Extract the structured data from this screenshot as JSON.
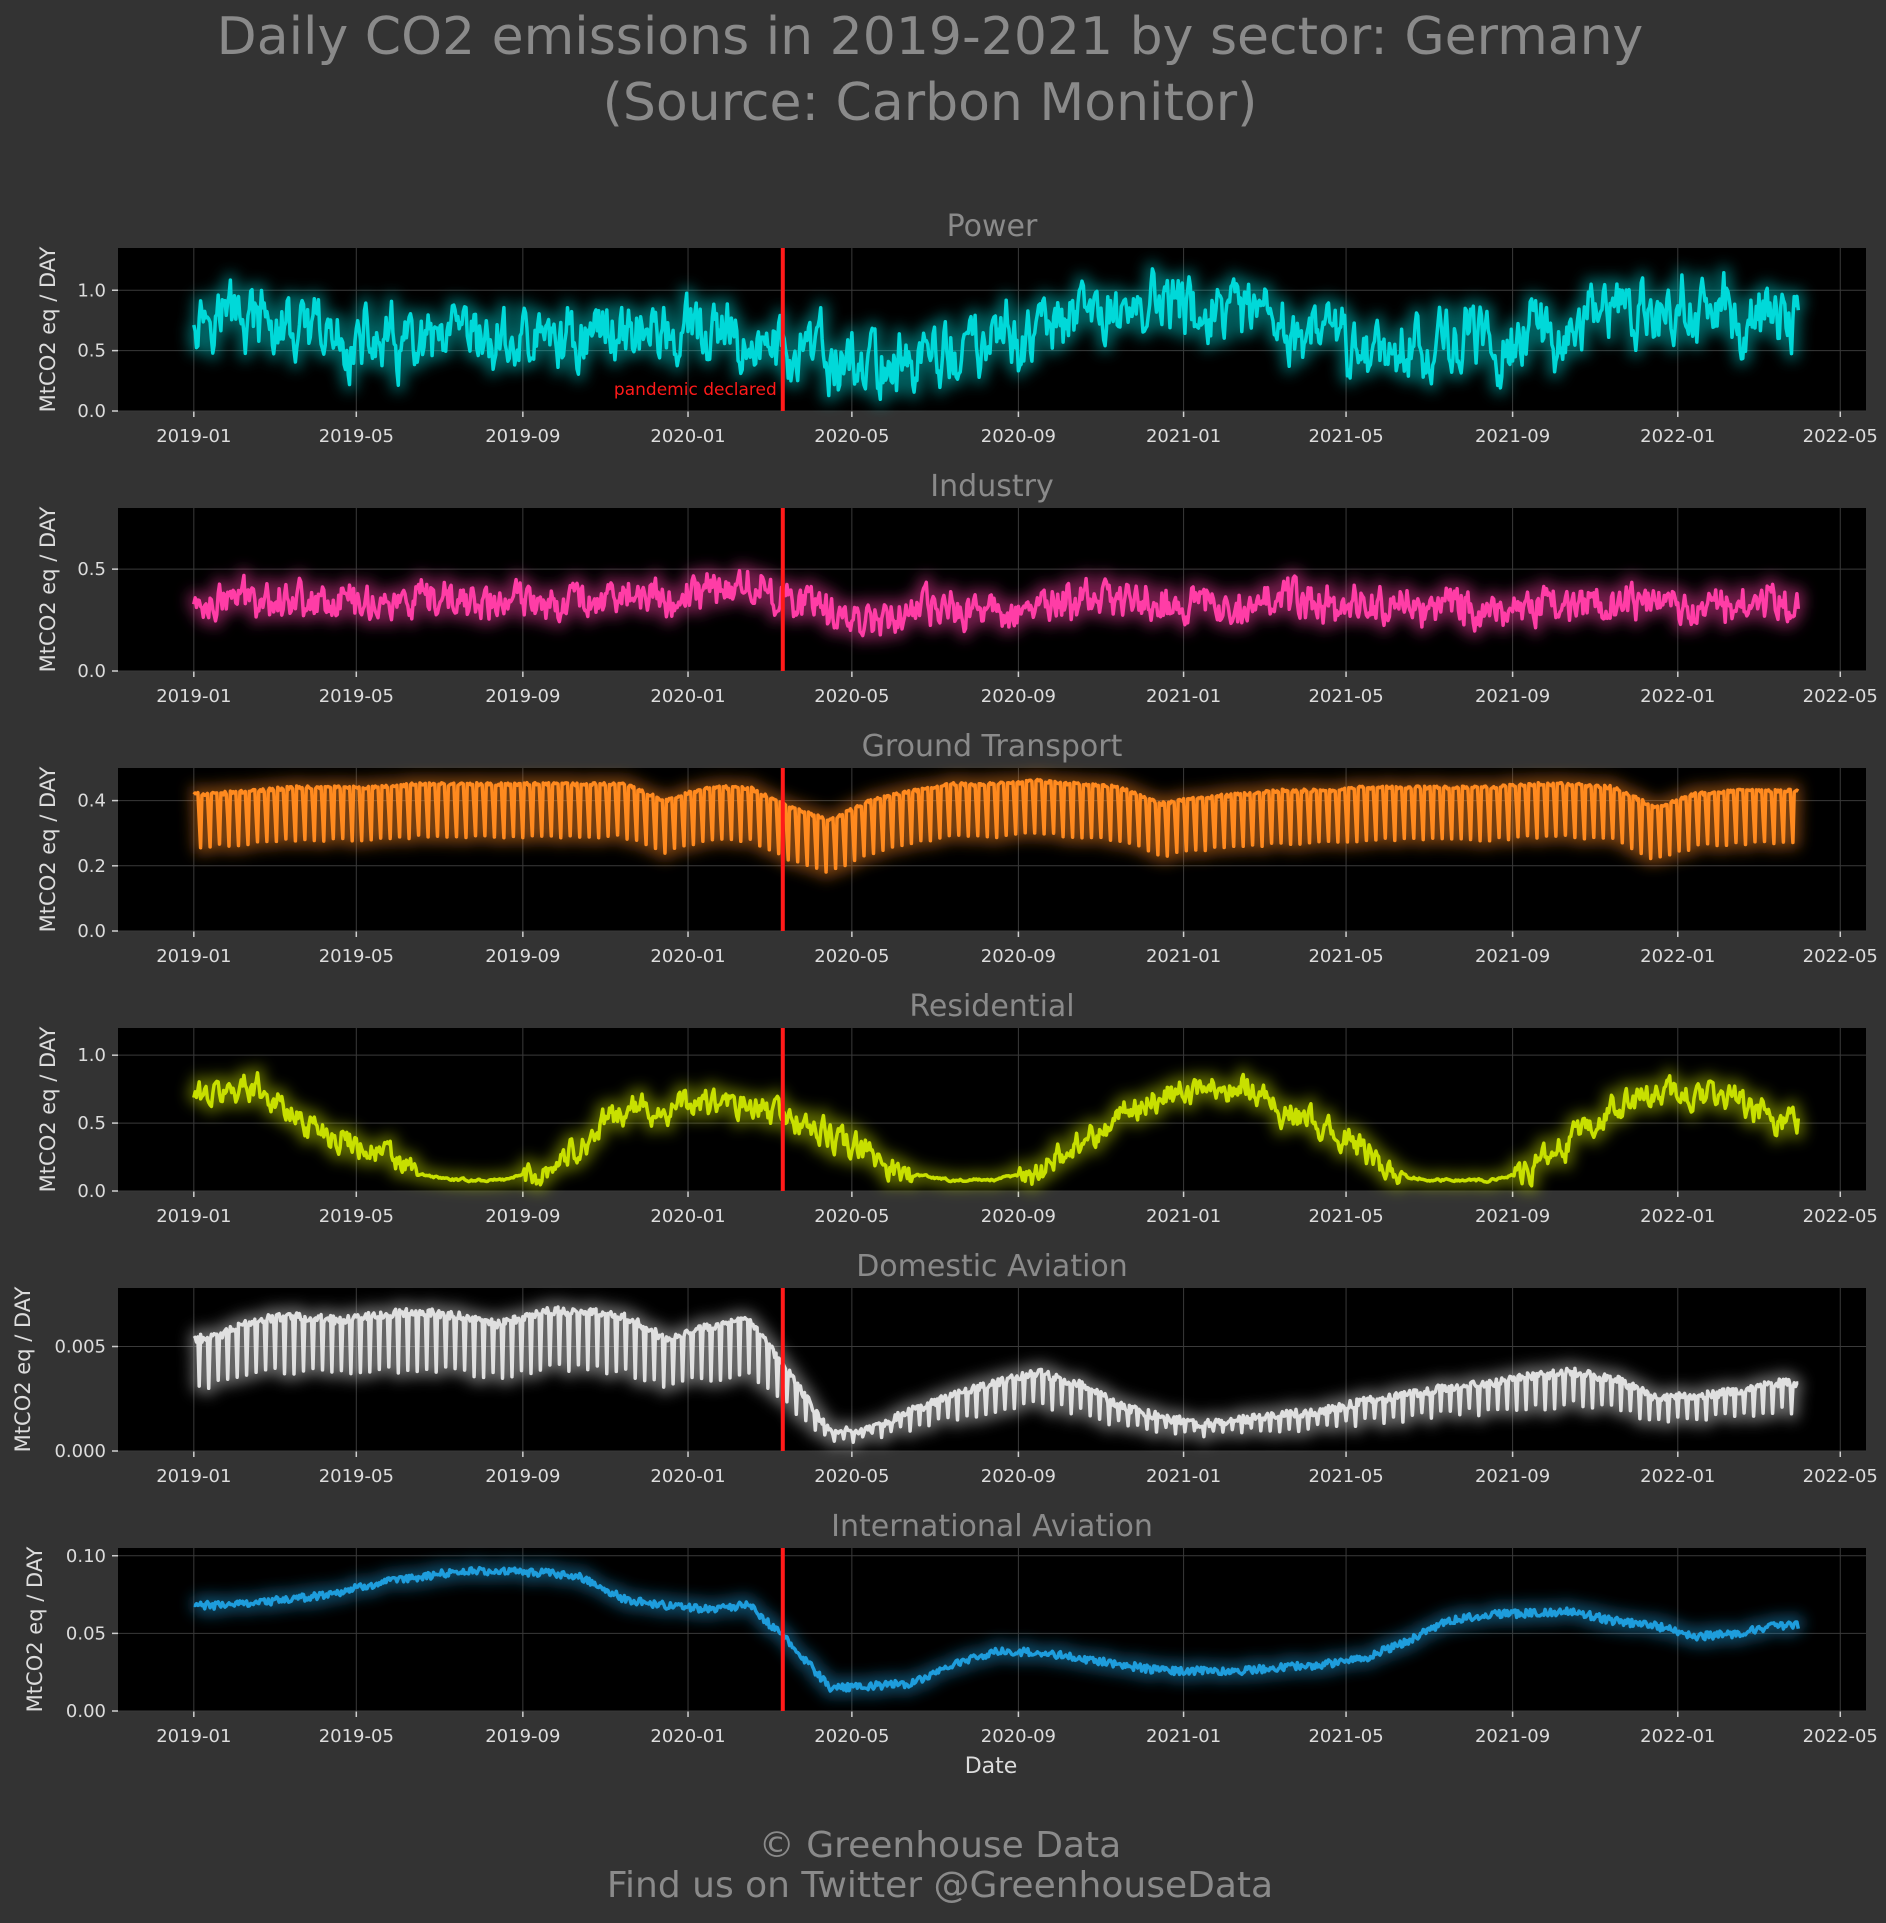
{
  "title_line1": "Daily CO2 emissions in 2019-2021 by sector: Germany",
  "title_line2": "(Source: Carbon Monitor)",
  "credit_line1": "© Greenhouse Data",
  "credit_line2": "Find us on Twitter @GreenhouseData",
  "colors": {
    "background": "#333333",
    "plot_background": "#000000",
    "grid": "#3a3a3a",
    "pandemic_line": "#ff1a1a"
  },
  "chart_data": {
    "type": "line",
    "xlabel": "Date",
    "x_ticks": [
      "2019-01",
      "2019-05",
      "2019-09",
      "2020-01",
      "2020-05",
      "2020-09",
      "2021-01",
      "2021-05",
      "2021-09",
      "2022-01",
      "2022-05"
    ],
    "x_range": [
      "2018-11-06",
      "2022-05-20"
    ],
    "data_range": [
      "2019-01-01",
      "2022-03-31"
    ],
    "annotation": {
      "date": "2020-03-11",
      "label": "pandemic declared"
    },
    "panels": [
      {
        "name": "Power",
        "ylabel": "MtCO2 eq / DAY",
        "color": "#00d9d9",
        "ylim": [
          0,
          1.35
        ],
        "yticks": [
          "0.0",
          "0.5",
          "1.0"
        ],
        "ytick_values": [
          0,
          0.5,
          1.0
        ],
        "monthly_mean": [
          [
            "2019-01",
            0.85
          ],
          [
            "2019-02",
            0.75
          ],
          [
            "2019-03",
            0.62
          ],
          [
            "2019-04",
            0.55
          ],
          [
            "2019-05",
            0.55
          ],
          [
            "2019-06",
            0.48
          ],
          [
            "2019-07",
            0.52
          ],
          [
            "2019-08",
            0.55
          ],
          [
            "2019-09",
            0.58
          ],
          [
            "2019-10",
            0.62
          ],
          [
            "2019-11",
            0.72
          ],
          [
            "2019-12",
            0.62
          ],
          [
            "2020-01",
            0.6
          ],
          [
            "2020-02",
            0.55
          ],
          [
            "2020-03",
            0.5
          ],
          [
            "2020-04",
            0.4
          ],
          [
            "2020-05",
            0.38
          ],
          [
            "2020-06",
            0.42
          ],
          [
            "2020-07",
            0.48
          ],
          [
            "2020-08",
            0.55
          ],
          [
            "2020-09",
            0.65
          ],
          [
            "2020-10",
            0.75
          ],
          [
            "2020-11",
            0.85
          ],
          [
            "2020-12",
            0.9
          ],
          [
            "2021-01",
            0.8
          ],
          [
            "2021-02",
            0.75
          ],
          [
            "2021-03",
            0.68
          ],
          [
            "2021-04",
            0.6
          ],
          [
            "2021-05",
            0.52
          ],
          [
            "2021-06",
            0.55
          ],
          [
            "2021-07",
            0.58
          ],
          [
            "2021-08",
            0.55
          ],
          [
            "2021-09",
            0.62
          ],
          [
            "2021-10",
            0.72
          ],
          [
            "2021-11",
            0.8
          ],
          [
            "2021-12",
            0.82
          ],
          [
            "2022-01",
            0.85
          ],
          [
            "2022-02",
            0.72
          ],
          [
            "2022-03",
            0.78
          ]
        ]
      },
      {
        "name": "Industry",
        "ylabel": "MtCO2 eq / DAY",
        "color": "#ff3da6",
        "ylim": [
          0,
          0.8
        ],
        "yticks": [
          "0.0",
          "0.5"
        ],
        "ytick_values": [
          0,
          0.5
        ],
        "monthly_mean": [
          [
            "2019-01",
            0.33
          ],
          [
            "2019-02",
            0.38
          ],
          [
            "2019-03",
            0.36
          ],
          [
            "2019-04",
            0.35
          ],
          [
            "2019-05",
            0.34
          ],
          [
            "2019-06",
            0.32
          ],
          [
            "2019-07",
            0.34
          ],
          [
            "2019-08",
            0.33
          ],
          [
            "2019-09",
            0.35
          ],
          [
            "2019-10",
            0.36
          ],
          [
            "2019-11",
            0.38
          ],
          [
            "2019-12",
            0.34
          ],
          [
            "2020-01",
            0.4
          ],
          [
            "2020-02",
            0.42
          ],
          [
            "2020-03",
            0.36
          ],
          [
            "2020-04",
            0.27
          ],
          [
            "2020-05",
            0.27
          ],
          [
            "2020-06",
            0.29
          ],
          [
            "2020-07",
            0.3
          ],
          [
            "2020-08",
            0.3
          ],
          [
            "2020-09",
            0.32
          ],
          [
            "2020-10",
            0.34
          ],
          [
            "2020-11",
            0.36
          ],
          [
            "2020-12",
            0.34
          ],
          [
            "2021-01",
            0.32
          ],
          [
            "2021-02",
            0.35
          ],
          [
            "2021-03",
            0.35
          ],
          [
            "2021-04",
            0.33
          ],
          [
            "2021-05",
            0.33
          ],
          [
            "2021-06",
            0.32
          ],
          [
            "2021-07",
            0.32
          ],
          [
            "2021-08",
            0.31
          ],
          [
            "2021-09",
            0.32
          ],
          [
            "2021-10",
            0.33
          ],
          [
            "2021-11",
            0.33
          ],
          [
            "2021-12",
            0.31
          ],
          [
            "2022-01",
            0.33
          ],
          [
            "2022-02",
            0.35
          ],
          [
            "2022-03",
            0.33
          ]
        ]
      },
      {
        "name": "Ground Transport",
        "ylabel": "MtCO2 eq / DAY",
        "color": "#ff8a1f",
        "ylim": [
          0,
          0.5
        ],
        "yticks": [
          "0.0",
          "0.2",
          "0.4"
        ],
        "ytick_values": [
          0,
          0.2,
          0.4
        ],
        "monthly_mean": [
          [
            "2019-01",
            0.4
          ],
          [
            "2019-02",
            0.41
          ],
          [
            "2019-03",
            0.42
          ],
          [
            "2019-04",
            0.42
          ],
          [
            "2019-05",
            0.42
          ],
          [
            "2019-06",
            0.43
          ],
          [
            "2019-07",
            0.43
          ],
          [
            "2019-08",
            0.43
          ],
          [
            "2019-09",
            0.43
          ],
          [
            "2019-10",
            0.43
          ],
          [
            "2019-11",
            0.43
          ],
          [
            "2019-12",
            0.38
          ],
          [
            "2020-01",
            0.42
          ],
          [
            "2020-02",
            0.42
          ],
          [
            "2020-03",
            0.36
          ],
          [
            "2020-04",
            0.32
          ],
          [
            "2020-05",
            0.38
          ],
          [
            "2020-06",
            0.41
          ],
          [
            "2020-07",
            0.43
          ],
          [
            "2020-08",
            0.43
          ],
          [
            "2020-09",
            0.44
          ],
          [
            "2020-10",
            0.43
          ],
          [
            "2020-11",
            0.42
          ],
          [
            "2020-12",
            0.37
          ],
          [
            "2021-01",
            0.39
          ],
          [
            "2021-02",
            0.4
          ],
          [
            "2021-03",
            0.41
          ],
          [
            "2021-04",
            0.41
          ],
          [
            "2021-05",
            0.42
          ],
          [
            "2021-06",
            0.42
          ],
          [
            "2021-07",
            0.42
          ],
          [
            "2021-08",
            0.42
          ],
          [
            "2021-09",
            0.43
          ],
          [
            "2021-10",
            0.43
          ],
          [
            "2021-11",
            0.42
          ],
          [
            "2021-12",
            0.36
          ],
          [
            "2022-01",
            0.4
          ],
          [
            "2022-02",
            0.41
          ],
          [
            "2022-03",
            0.41
          ]
        ]
      },
      {
        "name": "Residential",
        "ylabel": "MtCO2 eq / DAY",
        "color": "#c8e000",
        "ylim": [
          0,
          1.2
        ],
        "yticks": [
          "0.0",
          "0.5",
          "1.0"
        ],
        "ytick_values": [
          0,
          0.5,
          1.0
        ],
        "monthly_mean": [
          [
            "2019-01",
            0.7
          ],
          [
            "2019-02",
            0.8
          ],
          [
            "2019-03",
            0.55
          ],
          [
            "2019-04",
            0.42
          ],
          [
            "2019-05",
            0.3
          ],
          [
            "2019-06",
            0.12
          ],
          [
            "2019-07",
            0.08
          ],
          [
            "2019-08",
            0.08
          ],
          [
            "2019-09",
            0.15
          ],
          [
            "2019-10",
            0.35
          ],
          [
            "2019-11",
            0.6
          ],
          [
            "2019-12",
            0.6
          ],
          [
            "2020-01",
            0.65
          ],
          [
            "2020-02",
            0.6
          ],
          [
            "2020-03",
            0.55
          ],
          [
            "2020-04",
            0.4
          ],
          [
            "2020-05",
            0.25
          ],
          [
            "2020-06",
            0.12
          ],
          [
            "2020-07",
            0.08
          ],
          [
            "2020-08",
            0.08
          ],
          [
            "2020-09",
            0.15
          ],
          [
            "2020-10",
            0.35
          ],
          [
            "2020-11",
            0.55
          ],
          [
            "2020-12",
            0.7
          ],
          [
            "2021-01",
            0.75
          ],
          [
            "2021-02",
            0.8
          ],
          [
            "2021-03",
            0.6
          ],
          [
            "2021-04",
            0.45
          ],
          [
            "2021-05",
            0.3
          ],
          [
            "2021-06",
            0.1
          ],
          [
            "2021-07",
            0.08
          ],
          [
            "2021-08",
            0.08
          ],
          [
            "2021-09",
            0.15
          ],
          [
            "2021-10",
            0.35
          ],
          [
            "2021-11",
            0.6
          ],
          [
            "2021-12",
            0.7
          ],
          [
            "2022-01",
            0.7
          ],
          [
            "2022-02",
            0.65
          ],
          [
            "2022-03",
            0.5
          ]
        ]
      },
      {
        "name": "Domestic Aviation",
        "ylabel": "MtCO2 eq / DAY",
        "color": "#e0e0e0",
        "ylim": [
          0,
          0.0078
        ],
        "yticks": [
          "0.000",
          "0.005"
        ],
        "ytick_values": [
          0,
          0.005
        ],
        "monthly_mean": [
          [
            "2019-01",
            0.005
          ],
          [
            "2019-02",
            0.0058
          ],
          [
            "2019-03",
            0.006
          ],
          [
            "2019-04",
            0.0058
          ],
          [
            "2019-05",
            0.006
          ],
          [
            "2019-06",
            0.0062
          ],
          [
            "2019-07",
            0.006
          ],
          [
            "2019-08",
            0.0056
          ],
          [
            "2019-09",
            0.0062
          ],
          [
            "2019-10",
            0.0062
          ],
          [
            "2019-11",
            0.006
          ],
          [
            "2019-12",
            0.005
          ],
          [
            "2020-01",
            0.0055
          ],
          [
            "2020-02",
            0.0058
          ],
          [
            "2020-03",
            0.0035
          ],
          [
            "2020-04",
            0.0008
          ],
          [
            "2020-05",
            0.001
          ],
          [
            "2020-06",
            0.0018
          ],
          [
            "2020-07",
            0.0025
          ],
          [
            "2020-08",
            0.003
          ],
          [
            "2020-09",
            0.0035
          ],
          [
            "2020-10",
            0.003
          ],
          [
            "2020-11",
            0.002
          ],
          [
            "2020-12",
            0.0015
          ],
          [
            "2021-01",
            0.0012
          ],
          [
            "2021-02",
            0.0014
          ],
          [
            "2021-03",
            0.0016
          ],
          [
            "2021-04",
            0.0018
          ],
          [
            "2021-05",
            0.0022
          ],
          [
            "2021-06",
            0.0025
          ],
          [
            "2021-07",
            0.0028
          ],
          [
            "2021-08",
            0.003
          ],
          [
            "2021-09",
            0.0033
          ],
          [
            "2021-10",
            0.0035
          ],
          [
            "2021-11",
            0.0032
          ],
          [
            "2021-12",
            0.0024
          ],
          [
            "2022-01",
            0.0024
          ],
          [
            "2022-02",
            0.0027
          ],
          [
            "2022-03",
            0.003
          ]
        ]
      },
      {
        "name": "International Aviation",
        "ylabel": "MtCO2 eq / DAY",
        "color": "#1e9ddc",
        "ylim": [
          0,
          0.105
        ],
        "yticks": [
          "0.00",
          "0.05",
          "0.10"
        ],
        "ytick_values": [
          0,
          0.05,
          0.1
        ],
        "monthly_mean": [
          [
            "2019-01",
            0.068
          ],
          [
            "2019-02",
            0.07
          ],
          [
            "2019-03",
            0.072
          ],
          [
            "2019-04",
            0.076
          ],
          [
            "2019-05",
            0.082
          ],
          [
            "2019-06",
            0.086
          ],
          [
            "2019-07",
            0.09
          ],
          [
            "2019-08",
            0.09
          ],
          [
            "2019-09",
            0.089
          ],
          [
            "2019-10",
            0.086
          ],
          [
            "2019-11",
            0.072
          ],
          [
            "2019-12",
            0.068
          ],
          [
            "2020-01",
            0.066
          ],
          [
            "2020-02",
            0.068
          ],
          [
            "2020-03",
            0.045
          ],
          [
            "2020-04",
            0.015
          ],
          [
            "2020-05",
            0.016
          ],
          [
            "2020-06",
            0.018
          ],
          [
            "2020-07",
            0.03
          ],
          [
            "2020-08",
            0.038
          ],
          [
            "2020-09",
            0.038
          ],
          [
            "2020-10",
            0.034
          ],
          [
            "2020-11",
            0.03
          ],
          [
            "2020-12",
            0.026
          ],
          [
            "2021-01",
            0.026
          ],
          [
            "2021-02",
            0.026
          ],
          [
            "2021-03",
            0.028
          ],
          [
            "2021-04",
            0.03
          ],
          [
            "2021-05",
            0.034
          ],
          [
            "2021-06",
            0.045
          ],
          [
            "2021-07",
            0.058
          ],
          [
            "2021-08",
            0.062
          ],
          [
            "2021-09",
            0.063
          ],
          [
            "2021-10",
            0.064
          ],
          [
            "2021-11",
            0.058
          ],
          [
            "2021-12",
            0.055
          ],
          [
            "2022-01",
            0.048
          ],
          [
            "2022-02",
            0.05
          ],
          [
            "2022-03",
            0.055
          ]
        ]
      }
    ]
  }
}
